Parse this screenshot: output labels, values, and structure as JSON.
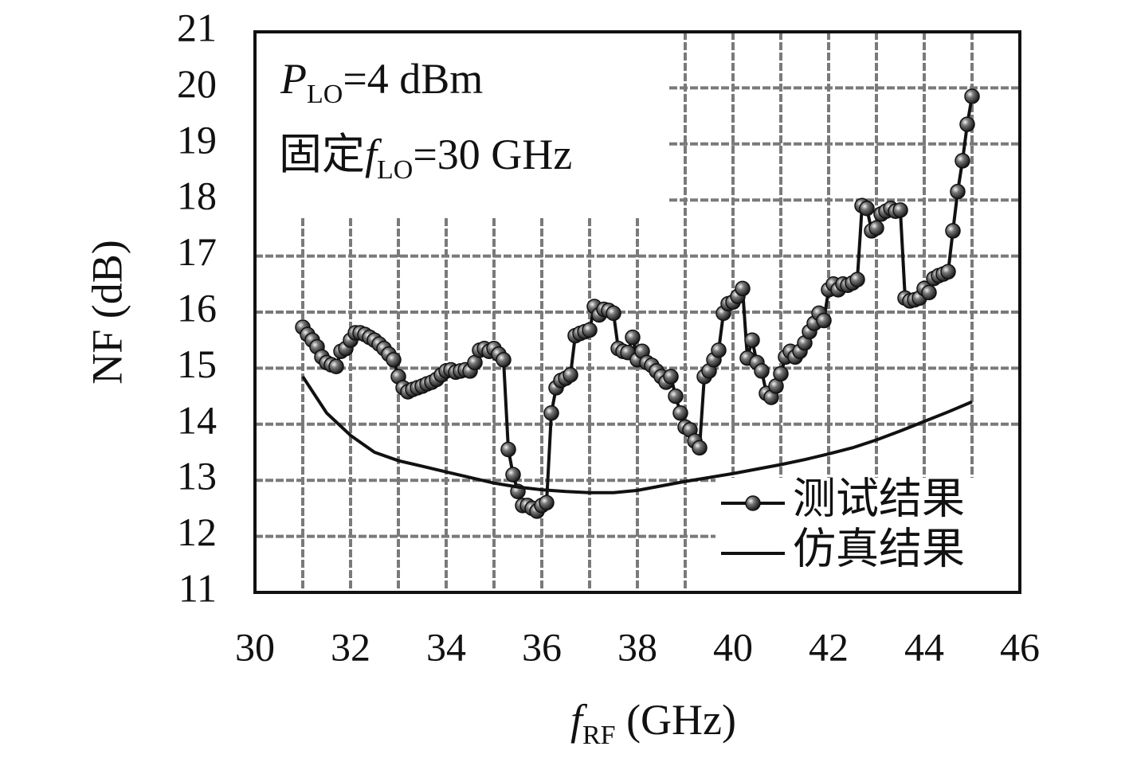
{
  "chart_data": {
    "type": "line",
    "ylabel": "NF (dB)",
    "xlabel": {
      "main": "f",
      "sub": "RF",
      "rest": " (GHz)"
    },
    "annotations": [
      {
        "main": "P",
        "sub": "LO",
        "rest": "=4 dBm"
      },
      {
        "prefix": "固定",
        "main": "f",
        "sub": "LO",
        "rest": "=30 GHz"
      }
    ],
    "xlim": [
      30,
      46
    ],
    "xticks": [
      30,
      32,
      34,
      36,
      38,
      40,
      42,
      44,
      46
    ],
    "xminorticks": [
      31,
      33,
      35,
      37,
      39,
      41,
      43,
      45
    ],
    "ylim": [
      11,
      21
    ],
    "yticks": [
      11,
      12,
      13,
      14,
      15,
      16,
      17,
      18,
      19,
      20,
      21
    ],
    "grid": true,
    "legend": "lower right",
    "series": [
      {
        "name": "测试结果",
        "color": "#111111",
        "marker": "circle",
        "x": [
          31.0,
          31.1,
          31.2,
          31.3,
          31.4,
          31.5,
          31.6,
          31.7,
          31.8,
          31.9,
          32.0,
          32.1,
          32.2,
          32.3,
          32.4,
          32.5,
          32.6,
          32.7,
          32.8,
          32.9,
          33.0,
          33.1,
          33.2,
          33.3,
          33.4,
          33.5,
          33.6,
          33.7,
          33.8,
          33.9,
          34.0,
          34.1,
          34.2,
          34.3,
          34.4,
          34.5,
          34.6,
          34.7,
          34.8,
          34.9,
          35.0,
          35.1,
          35.2,
          35.3,
          35.4,
          35.5,
          35.6,
          35.7,
          35.8,
          35.9,
          36.0,
          36.1,
          36.2,
          36.3,
          36.4,
          36.5,
          36.6,
          36.7,
          36.8,
          36.9,
          37.0,
          37.1,
          37.2,
          37.3,
          37.4,
          37.5,
          37.6,
          37.7,
          37.8,
          37.9,
          38.0,
          38.1,
          38.2,
          38.3,
          38.4,
          38.5,
          38.6,
          38.7,
          38.8,
          38.9,
          39.0,
          39.1,
          39.2,
          39.3,
          39.4,
          39.5,
          39.6,
          39.7,
          39.8,
          39.9,
          40.0,
          40.1,
          40.2,
          40.3,
          40.4,
          40.5,
          40.6,
          40.7,
          40.8,
          40.9,
          41.0,
          41.1,
          41.2,
          41.3,
          41.4,
          41.5,
          41.6,
          41.7,
          41.8,
          41.9,
          42.0,
          42.1,
          42.2,
          42.3,
          42.4,
          42.5,
          42.6,
          42.7,
          42.8,
          42.9,
          43.0,
          43.1,
          43.2,
          43.3,
          43.4,
          43.5,
          43.6,
          43.7,
          43.8,
          43.9,
          44.0,
          44.1,
          44.2,
          44.3,
          44.4,
          44.5,
          44.6,
          44.7,
          44.8,
          44.9,
          45.0
        ],
        "values": [
          15.73,
          15.6,
          15.5,
          15.38,
          15.2,
          15.1,
          15.06,
          15.03,
          15.3,
          15.35,
          15.5,
          15.63,
          15.63,
          15.6,
          15.55,
          15.5,
          15.43,
          15.35,
          15.25,
          15.15,
          14.85,
          14.65,
          14.58,
          14.62,
          14.65,
          14.68,
          14.72,
          14.75,
          14.8,
          14.88,
          14.95,
          14.97,
          14.93,
          14.95,
          14.97,
          14.95,
          15.1,
          15.32,
          15.35,
          15.3,
          15.35,
          15.25,
          15.15,
          13.55,
          13.1,
          12.8,
          12.55,
          12.55,
          12.5,
          12.45,
          12.55,
          12.6,
          14.2,
          14.65,
          14.78,
          14.82,
          14.88,
          15.58,
          15.62,
          15.65,
          15.68,
          16.1,
          15.95,
          16.05,
          16.03,
          15.98,
          15.35,
          15.3,
          15.28,
          15.55,
          15.15,
          15.3,
          15.1,
          15.05,
          14.95,
          14.85,
          14.75,
          14.85,
          14.5,
          14.2,
          13.95,
          13.9,
          13.7,
          13.58,
          14.85,
          14.95,
          15.15,
          15.32,
          15.98,
          16.15,
          16.18,
          16.28,
          16.42,
          15.18,
          15.5,
          15.1,
          14.95,
          14.55,
          14.48,
          14.68,
          14.9,
          15.2,
          15.3,
          15.2,
          15.3,
          15.45,
          15.65,
          15.8,
          15.98,
          15.85,
          16.4,
          16.5,
          16.4,
          16.5,
          16.48,
          16.52,
          16.58,
          17.9,
          17.85,
          17.45,
          17.5,
          17.75,
          17.8,
          17.85,
          17.8,
          17.82,
          16.25,
          16.2,
          16.22,
          16.25,
          16.42,
          16.35,
          16.6,
          16.65,
          16.68,
          16.72,
          17.45,
          18.15,
          18.7,
          19.35,
          19.85
        ]
      },
      {
        "name": "仿真结果",
        "color": "#111111",
        "marker": "none",
        "x": [
          31,
          31.5,
          32,
          32.5,
          33,
          33.5,
          34,
          34.5,
          35,
          35.5,
          36,
          36.5,
          37,
          37.5,
          38,
          38.5,
          39,
          39.5,
          40,
          40.5,
          41,
          41.5,
          42,
          42.5,
          43,
          43.5,
          44,
          44.5,
          45
        ],
        "values": [
          14.85,
          14.2,
          13.8,
          13.5,
          13.35,
          13.25,
          13.15,
          13.05,
          12.95,
          12.88,
          12.83,
          12.8,
          12.78,
          12.78,
          12.82,
          12.9,
          12.98,
          13.05,
          13.12,
          13.2,
          13.28,
          13.37,
          13.47,
          13.58,
          13.72,
          13.88,
          14.05,
          14.22,
          14.4
        ]
      }
    ]
  }
}
